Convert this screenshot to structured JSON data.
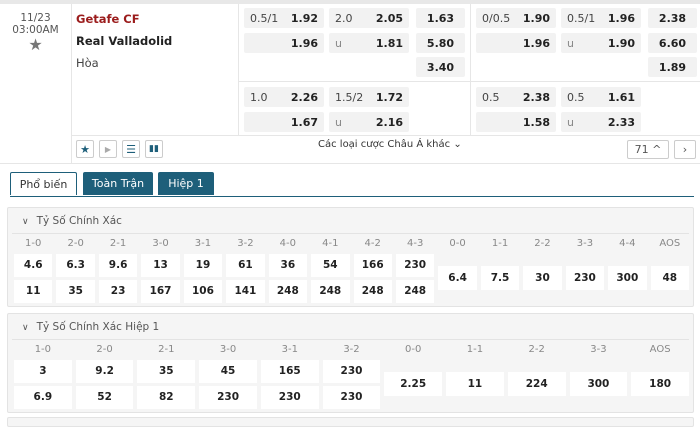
{
  "match": {
    "date": "11/23",
    "time": "03:00AM",
    "home": "Getafe CF",
    "away": "Real Valladolid",
    "draw": "Hòa"
  },
  "odds_full": {
    "main": {
      "hdp": {
        "line": "0.5/1",
        "home": "1.92",
        "away": "1.96"
      },
      "ou": {
        "line": "2.0",
        "over": "2.05",
        "u": "u",
        "under": "1.81"
      },
      "x12": [
        "1.63",
        "5.80",
        "3.40"
      ]
    },
    "alt": {
      "hdp": {
        "line": "1.0",
        "home": "2.26",
        "away": "1.67"
      },
      "ou": {
        "line": "1.5/2",
        "over": "1.72",
        "u": "u",
        "under": "2.16"
      }
    }
  },
  "odds_half": {
    "main": {
      "hdp": {
        "line": "0/0.5",
        "home": "1.90",
        "away": "1.96"
      },
      "ou": {
        "line": "0.5/1",
        "over": "1.96",
        "u": "u",
        "under": "1.90"
      },
      "x12": [
        "2.38",
        "6.60",
        "1.89"
      ]
    },
    "alt": {
      "hdp": {
        "line": "0.5",
        "home": "2.38",
        "away": "1.58"
      },
      "ou": {
        "line": "0.5",
        "over": "1.61",
        "u": "u",
        "under": "2.33"
      }
    }
  },
  "toolbar": {
    "more_bets": "Các loại cược Châu Á khác",
    "count": "71",
    "icons": [
      "star-icon",
      "play-icon",
      "list-icon",
      "stats-icon"
    ]
  },
  "tabs": [
    {
      "label": "Phổ biến",
      "active": true
    },
    {
      "label": "Toàn Trận",
      "active": false
    },
    {
      "label": "Hiệp 1",
      "active": false
    }
  ],
  "sections": [
    {
      "title": "Tỷ Số Chính Xác",
      "wins": [
        {
          "s": "1-0",
          "h": "4.6",
          "a": "11"
        },
        {
          "s": "2-0",
          "h": "6.3",
          "a": "35"
        },
        {
          "s": "2-1",
          "h": "9.6",
          "a": "23"
        },
        {
          "s": "3-0",
          "h": "13",
          "a": "167"
        },
        {
          "s": "3-1",
          "h": "19",
          "a": "106"
        },
        {
          "s": "3-2",
          "h": "61",
          "a": "141"
        },
        {
          "s": "4-0",
          "h": "36",
          "a": "248"
        },
        {
          "s": "4-1",
          "h": "54",
          "a": "248"
        },
        {
          "s": "4-2",
          "h": "166",
          "a": "248"
        },
        {
          "s": "4-3",
          "h": "230",
          "a": "248"
        }
      ],
      "draws": [
        {
          "s": "0-0",
          "v": "6.4"
        },
        {
          "s": "1-1",
          "v": "7.5"
        },
        {
          "s": "2-2",
          "v": "30"
        },
        {
          "s": "3-3",
          "v": "230"
        },
        {
          "s": "4-4",
          "v": "300"
        },
        {
          "s": "AOS",
          "v": "48"
        }
      ]
    },
    {
      "title": "Tỷ Số Chính Xác Hiệp 1",
      "wins": [
        {
          "s": "1-0",
          "h": "3",
          "a": "6.9"
        },
        {
          "s": "2-0",
          "h": "9.2",
          "a": "52"
        },
        {
          "s": "2-1",
          "h": "35",
          "a": "82"
        },
        {
          "s": "3-0",
          "h": "45",
          "a": "230"
        },
        {
          "s": "3-1",
          "h": "165",
          "a": "230"
        },
        {
          "s": "3-2",
          "h": "230",
          "a": "230"
        }
      ],
      "draws": [
        {
          "s": "0-0",
          "v": "2.25"
        },
        {
          "s": "1-1",
          "v": "11"
        },
        {
          "s": "2-2",
          "v": "224"
        },
        {
          "s": "3-3",
          "v": "300"
        },
        {
          "s": "AOS",
          "v": "180"
        }
      ]
    }
  ],
  "colors": {
    "accent": "#1e5f7a",
    "home_team": "#9b1c1c"
  }
}
